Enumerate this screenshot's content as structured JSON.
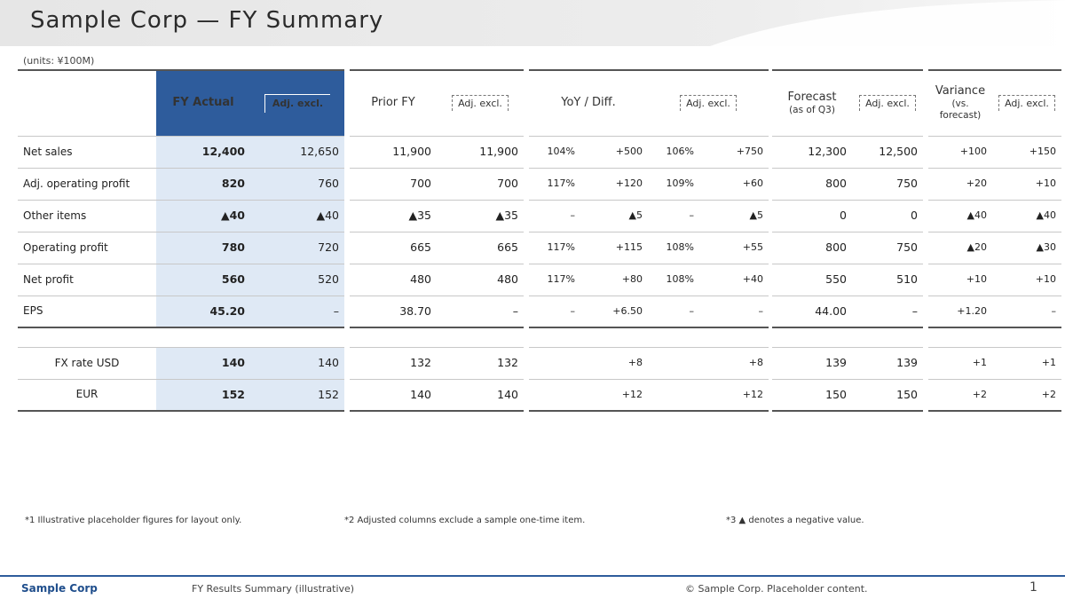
{
  "title": "Sample Corp — FY Summary",
  "unit": "(units: ¥100M)",
  "columns": {
    "current": "FY Actual",
    "current_excl": "Adj. excl.",
    "prior": "Prior FY",
    "prior_excl": "Adj. excl.",
    "yoy": "YoY / Diff.",
    "yoy_excl": "Adj. excl.",
    "forecast": "Forecast",
    "forecast_date": "(as of Q3)",
    "forecast_excl": "Adj. excl.",
    "variance": "Variance",
    "variance_date": "(vs. forecast)",
    "variance_excl": "Adj. excl."
  },
  "rows": [
    {
      "label": "Net sales",
      "cur": "12,400",
      "cur_x": "12,650",
      "pri": "11,900",
      "pri_x": "11,900",
      "yoy1": "104%",
      "yoy2": "+500",
      "yoyx1": "106%",
      "yoyx2": "+750",
      "fc": "12,300",
      "fc_x": "12,500",
      "var": "+100",
      "var_x": "+150"
    },
    {
      "label": "Adj. operating profit",
      "cur": "820",
      "cur_x": "760",
      "pri": "700",
      "pri_x": "700",
      "yoy1": "117%",
      "yoy2": "+120",
      "yoyx1": "109%",
      "yoyx2": "+60",
      "fc": "800",
      "fc_x": "750",
      "var": "+20",
      "var_x": "+10"
    },
    {
      "label": "Other items",
      "cur": "▲40",
      "cur_x": "▲40",
      "pri": "▲35",
      "pri_x": "▲35",
      "yoy1": "–",
      "yoy2": "▲5",
      "yoyx1": "–",
      "yoyx2": "▲5",
      "fc": "0",
      "fc_x": "0",
      "var": "▲40",
      "var_x": "▲40"
    },
    {
      "label": "Operating profit",
      "cur": "780",
      "cur_x": "720",
      "pri": "665",
      "pri_x": "665",
      "yoy1": "117%",
      "yoy2": "+115",
      "yoyx1": "108%",
      "yoyx2": "+55",
      "fc": "800",
      "fc_x": "750",
      "var": "▲20",
      "var_x": "▲30"
    },
    {
      "label": "Net profit",
      "cur": "560",
      "cur_x": "520",
      "pri": "480",
      "pri_x": "480",
      "yoy1": "117%",
      "yoy2": "+80",
      "yoyx1": "108%",
      "yoyx2": "+40",
      "fc": "550",
      "fc_x": "510",
      "var": "+10",
      "var_x": "+10"
    },
    {
      "label": "EPS",
      "cur": "45.20",
      "cur_x": "–",
      "pri": "38.70",
      "pri_x": "–",
      "yoy1": "–",
      "yoy2": "+6.50",
      "yoyx1": "–",
      "yoyx2": "–",
      "fc": "44.00",
      "fc_x": "–",
      "var": "+1.20",
      "var_x": "–"
    }
  ],
  "fx": {
    "group_label": "FX rate",
    "rows": [
      {
        "ccy": "USD",
        "cur": "140",
        "cur_x": "140",
        "pri": "132",
        "pri_x": "132",
        "yoy": "+8",
        "yoyx": "+8",
        "fc": "139",
        "fc_x": "139",
        "var": "+1",
        "var_x": "+1"
      },
      {
        "ccy": "EUR",
        "cur": "152",
        "cur_x": "152",
        "pri": "140",
        "pri_x": "140",
        "yoy": "+12",
        "yoyx": "+12",
        "fc": "150",
        "fc_x": "150",
        "var": "+2",
        "var_x": "+2"
      }
    ]
  },
  "footnotes": [
    "*1 Illustrative placeholder figures for layout only.",
    "*2 Adjusted columns exclude a sample one-time item.",
    "*3 ▲ denotes a negative value."
  ],
  "footer": {
    "brand": "Sample Corp",
    "doc": "FY Results Summary (illustrative)",
    "copy": "© Sample Corp. Placeholder content.",
    "page": "1"
  }
}
